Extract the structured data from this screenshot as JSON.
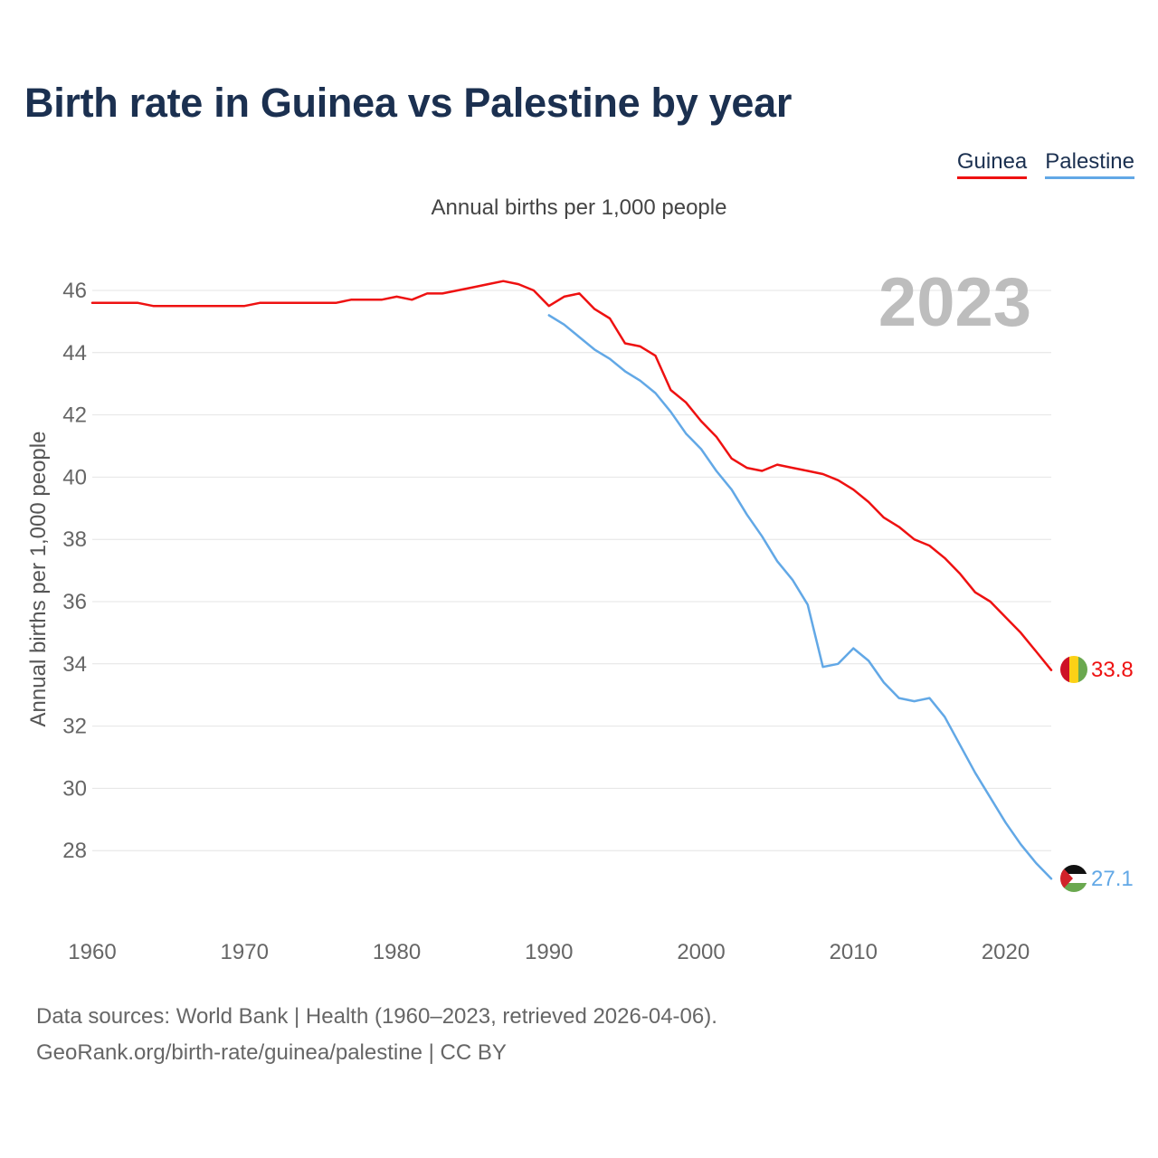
{
  "title": "Birth rate in Guinea vs Palestine by year",
  "subtitle": "Annual births per 1,000 people",
  "legend": [
    {
      "label": "Guinea",
      "color": "#ee1111"
    },
    {
      "label": "Palestine",
      "color": "#62a8e6"
    }
  ],
  "footer": {
    "line1": "Data sources: World Bank | Health (1960–2023, retrieved 2026-04-06).",
    "line2": "GeoRank.org/birth-rate/guinea/palestine | CC BY"
  },
  "chart_data": {
    "type": "line",
    "title": "Birth rate in Guinea vs Palestine by year",
    "ylabel": "Annual births per 1,000 people",
    "xlabel": "",
    "year_label": "2023",
    "xlim": [
      1960,
      2023
    ],
    "ylim": [
      26,
      47
    ],
    "x_ticks": [
      1960,
      1970,
      1980,
      1990,
      2000,
      2010,
      2020
    ],
    "y_ticks": [
      28,
      30,
      32,
      34,
      36,
      38,
      40,
      42,
      44,
      46
    ],
    "grid": true,
    "legend_position": "top-right",
    "series": [
      {
        "name": "Guinea",
        "color": "#ee1111",
        "end_label": "33.8",
        "flag": "guinea",
        "x": [
          1960,
          1961,
          1962,
          1963,
          1964,
          1965,
          1966,
          1967,
          1968,
          1969,
          1970,
          1971,
          1972,
          1973,
          1974,
          1975,
          1976,
          1977,
          1978,
          1979,
          1980,
          1981,
          1982,
          1983,
          1984,
          1985,
          1986,
          1987,
          1988,
          1989,
          1990,
          1991,
          1992,
          1993,
          1994,
          1995,
          1996,
          1997,
          1998,
          1999,
          2000,
          2001,
          2002,
          2003,
          2004,
          2005,
          2006,
          2007,
          2008,
          2009,
          2010,
          2011,
          2012,
          2013,
          2014,
          2015,
          2016,
          2017,
          2018,
          2019,
          2020,
          2021,
          2022,
          2023
        ],
        "values": [
          45.6,
          45.6,
          45.6,
          45.6,
          45.5,
          45.5,
          45.5,
          45.5,
          45.5,
          45.5,
          45.5,
          45.6,
          45.6,
          45.6,
          45.6,
          45.6,
          45.6,
          45.7,
          45.7,
          45.7,
          45.8,
          45.7,
          45.9,
          45.9,
          46.0,
          46.1,
          46.2,
          46.3,
          46.2,
          46.0,
          45.5,
          45.8,
          45.9,
          45.4,
          45.1,
          44.3,
          44.2,
          43.9,
          42.8,
          42.4,
          41.8,
          41.3,
          40.6,
          40.3,
          40.2,
          40.4,
          40.3,
          40.2,
          40.1,
          39.9,
          39.6,
          39.2,
          38.7,
          38.4,
          38.0,
          37.8,
          37.4,
          36.9,
          36.3,
          36.0,
          35.5,
          35.0,
          34.4,
          33.8
        ]
      },
      {
        "name": "Palestine",
        "color": "#62a8e6",
        "end_label": "27.1",
        "flag": "palestine",
        "x": [
          1990,
          1991,
          1992,
          1993,
          1994,
          1995,
          1996,
          1997,
          1998,
          1999,
          2000,
          2001,
          2002,
          2003,
          2004,
          2005,
          2006,
          2007,
          2008,
          2009,
          2010,
          2011,
          2012,
          2013,
          2014,
          2015,
          2016,
          2017,
          2018,
          2019,
          2020,
          2021,
          2022,
          2023
        ],
        "values": [
          45.2,
          44.9,
          44.5,
          44.1,
          43.8,
          43.4,
          43.1,
          42.7,
          42.1,
          41.4,
          40.9,
          40.2,
          39.6,
          38.8,
          38.1,
          37.3,
          36.7,
          35.9,
          33.9,
          34.0,
          34.5,
          34.1,
          33.4,
          32.9,
          32.8,
          32.9,
          32.3,
          31.4,
          30.5,
          29.7,
          28.9,
          28.2,
          27.6,
          27.1
        ]
      }
    ]
  }
}
